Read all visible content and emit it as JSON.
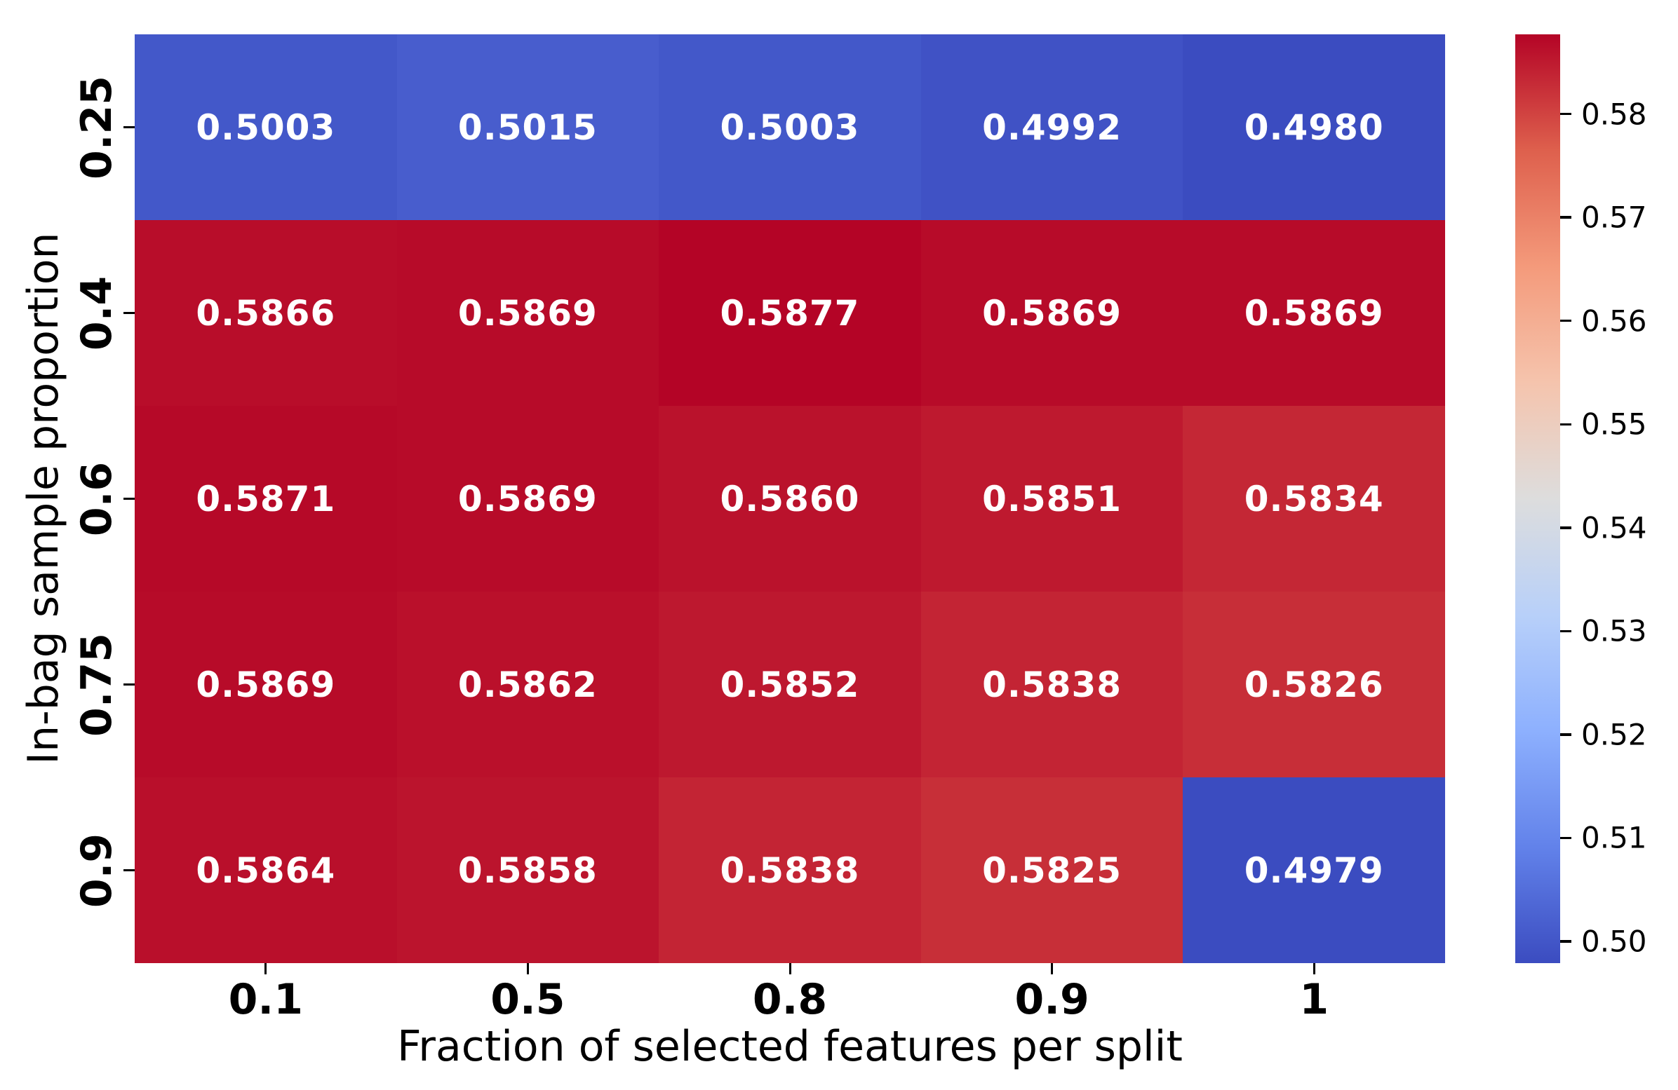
{
  "chart_data": {
    "type": "heatmap",
    "title": "",
    "xlabel": "Fraction of selected features per split",
    "ylabel": "In-bag sample proportion",
    "x_categories": [
      "0.1",
      "0.5",
      "0.8",
      "0.9",
      "1"
    ],
    "y_categories": [
      "0.25",
      "0.4",
      "0.6",
      "0.75",
      "0.9"
    ],
    "values": [
      [
        0.5003,
        0.5015,
        0.5003,
        0.4992,
        0.498
      ],
      [
        0.5866,
        0.5869,
        0.5877,
        0.5869,
        0.5869
      ],
      [
        0.5871,
        0.5869,
        0.586,
        0.5851,
        0.5834
      ],
      [
        0.5869,
        0.5862,
        0.5852,
        0.5838,
        0.5826
      ],
      [
        0.5864,
        0.5858,
        0.5838,
        0.5825,
        0.4979
      ]
    ],
    "cell_labels": [
      [
        "0.5003",
        "0.5015",
        "0.5003",
        "0.4992",
        "0.4980"
      ],
      [
        "0.5866",
        "0.5869",
        "0.5877",
        "0.5869",
        "0.5869"
      ],
      [
        "0.5871",
        "0.5869",
        "0.5860",
        "0.5851",
        "0.5834"
      ],
      [
        "0.5869",
        "0.5862",
        "0.5852",
        "0.5838",
        "0.5826"
      ],
      [
        "0.5864",
        "0.5858",
        "0.5838",
        "0.5825",
        "0.4979"
      ]
    ],
    "vmin": 0.4979,
    "vmax": 0.5877,
    "colormap": "coolwarm",
    "colormap_anchors": [
      {
        "t": 0.0,
        "color": "#3b4cc0"
      },
      {
        "t": 0.125,
        "color": "#6282ea"
      },
      {
        "t": 0.25,
        "color": "#8db0fe"
      },
      {
        "t": 0.375,
        "color": "#b8d0f9"
      },
      {
        "t": 0.5,
        "color": "#dddddd"
      },
      {
        "t": 0.625,
        "color": "#f5c4ad"
      },
      {
        "t": 0.75,
        "color": "#f49a7b"
      },
      {
        "t": 0.875,
        "color": "#de604d"
      },
      {
        "t": 1.0,
        "color": "#b40426"
      }
    ],
    "annotation_text_color": "#ffffff",
    "axis_text_color": "#000000",
    "background_color": "#ffffff",
    "grid": false,
    "legend_position": "none",
    "colorbar": {
      "position": "right",
      "tick_labels": [
        "0.58",
        "0.57",
        "0.56",
        "0.55",
        "0.54",
        "0.53",
        "0.52",
        "0.51",
        "0.50"
      ],
      "tick_values": [
        0.58,
        0.57,
        0.56,
        0.55,
        0.54,
        0.53,
        0.52,
        0.51,
        0.5
      ]
    }
  }
}
